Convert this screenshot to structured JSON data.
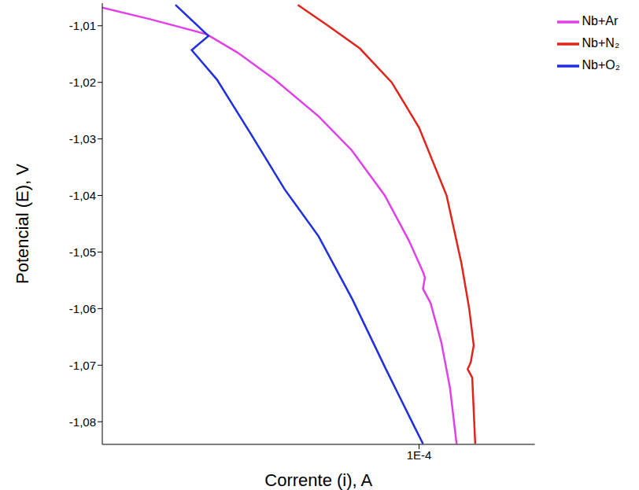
{
  "chart_data": {
    "type": "line",
    "x_label": "Corrente (i), A",
    "y_label": "Potencial (E), V",
    "log": "x",
    "grid": false,
    "legend": "upper right",
    "xlim": [
      2e-05,
      0.00018
    ],
    "xticks": [
      {
        "value": 0.0001,
        "label": "1E-4"
      }
    ],
    "ylim": [
      -1.084,
      -1.006
    ],
    "yticks": [
      {
        "value": -1.01,
        "label": "-1,01"
      },
      {
        "value": -1.02,
        "label": "-1,02"
      },
      {
        "value": -1.03,
        "label": "-1,03"
      },
      {
        "value": -1.04,
        "label": "-1,04"
      },
      {
        "value": -1.05,
        "label": "-1,05"
      },
      {
        "value": -1.06,
        "label": "-1,06"
      },
      {
        "value": -1.07,
        "label": "-1,07"
      },
      {
        "value": -1.08,
        "label": "-1,08"
      }
    ],
    "series": [
      {
        "name": "Nb+Ar",
        "color": "#e040e8",
        "x": [
          2e-05,
          2.54e-05,
          3.4e-05,
          3.97e-05,
          4.8e-05,
          6e-05,
          7.1e-05,
          8.4e-05,
          9.5e-05,
          0.000102,
          0.000103,
          0.000102,
          0.000106,
          0.000112,
          0.000117,
          0.000121
        ],
        "values": [
          -1.0068,
          -1.0088,
          -1.0115,
          -1.0147,
          -1.0195,
          -1.026,
          -1.032,
          -1.04,
          -1.048,
          -1.0535,
          -1.0545,
          -1.0565,
          -1.059,
          -1.066,
          -1.074,
          -1.0839
        ]
      },
      {
        "name": "Nb+N₂",
        "color": "#e3241b",
        "x": [
          5.4e-05,
          6.3e-05,
          7.4e-05,
          8.7e-05,
          0.0001,
          0.000115,
          0.000124,
          0.000129,
          0.000132,
          0.00013,
          0.000128,
          0.000131,
          0.000132,
          0.000133
        ],
        "values": [
          -1.0063,
          -1.01,
          -1.014,
          -1.02,
          -1.028,
          -1.04,
          -1.052,
          -1.06,
          -1.0665,
          -1.0695,
          -1.0707,
          -1.0722,
          -1.078,
          -1.0839
        ]
      },
      {
        "name": "Nb+O₂",
        "color": "#1f2ee0",
        "x": [
          2.9e-05,
          3.43e-05,
          3.15e-05,
          3.58e-05,
          4.26e-05,
          5.05e-05,
          6e-05,
          7.12e-05,
          8.45e-05,
          9.7e-05,
          0.000102
        ],
        "values": [
          -1.0063,
          -1.0118,
          -1.0143,
          -1.0195,
          -1.0292,
          -1.0389,
          -1.0472,
          -1.0583,
          -1.0707,
          -1.0804,
          -1.0839
        ]
      }
    ]
  }
}
